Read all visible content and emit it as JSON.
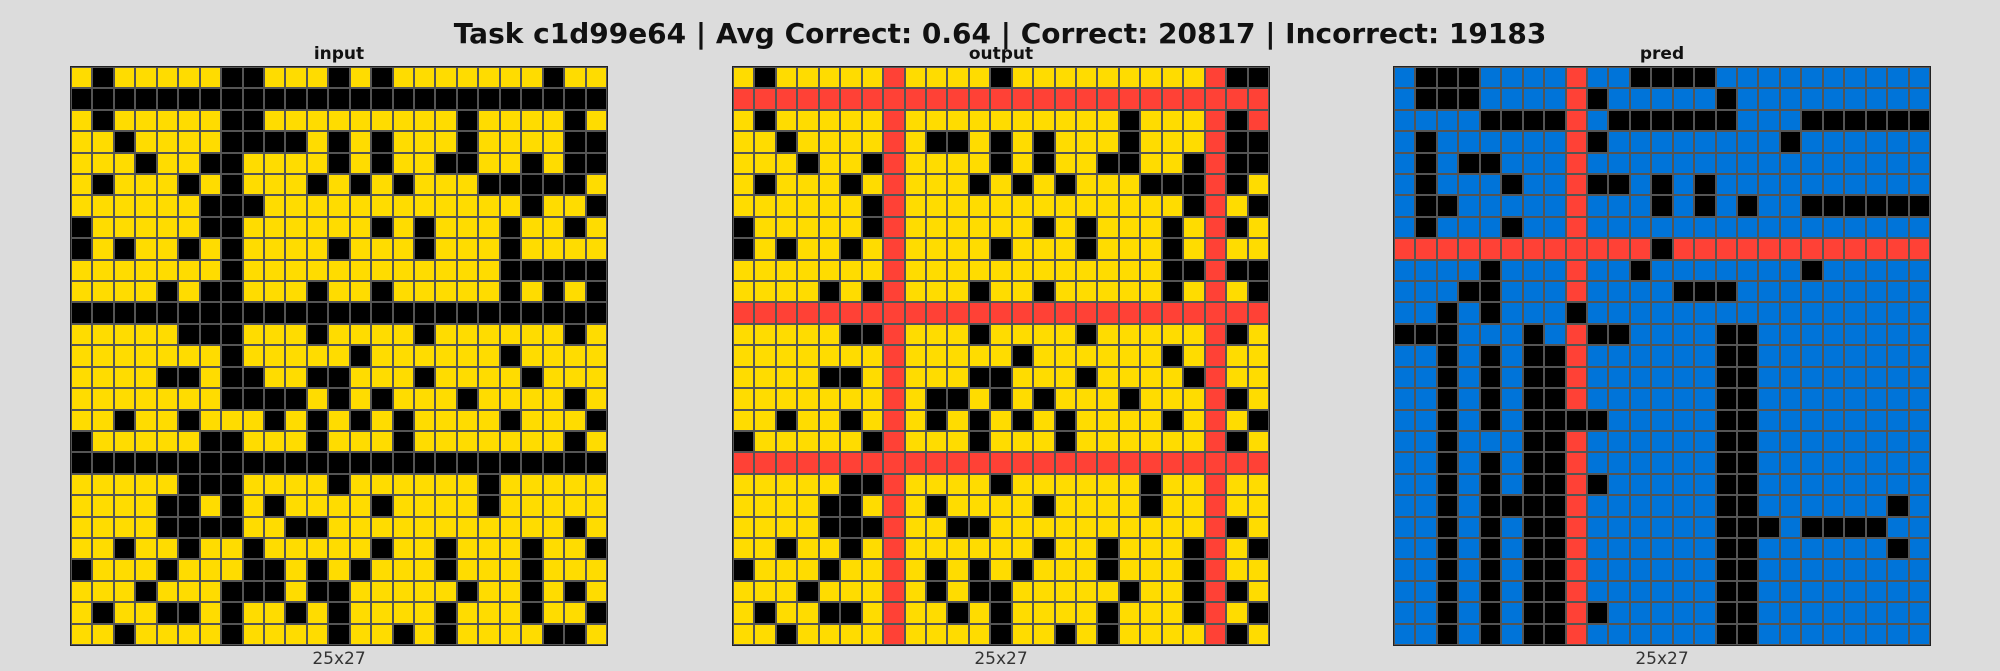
{
  "title": "Task c1d99e64 | Avg Correct: 0.64 | Correct: 20817 | Incorrect: 19183",
  "palette": {
    "0": "#000000",
    "1": "#0074d9",
    "2": "#ff4136",
    "4": "#ffdc00"
  },
  "panels": [
    {
      "label": "input",
      "dims": "25x27",
      "rows": [
        "4044444004440404444444044",
        "0000000000000000000000000",
        "4044444004444444440444404",
        "4404444000040404440444400",
        "4440440044440404400440400",
        "4044404044404040444000004",
        "4444440004444444444440440",
        "0444440044444404044404404",
        "0404404044440444044404444",
        "4444444044444444444400000",
        "4444040044404404444404040",
        "0000000000000000000000000",
        "4444400044404444044444404",
        "4444444044444044444404444",
        "4444004004400444044440444",
        "4444444000040404440444404",
        "4404404440404040444404440",
        "0444440044404440444444404",
        "0000000000000000000000000",
        "4444400044440444444044444",
        "4444004040444404444044444",
        "4444000044004444444444404",
        "4404404404444404404440440",
        "0444044400404044404440444",
        "4440444000400444440440404",
        "4044004044040444404440440",
        "4404444044440440404444004"
      ]
    },
    {
      "label": "output",
      "dims": "25x27",
      "rows": [
        "4044444244440444444444200",
        "2222222222222222222222222",
        "4044444244444444440444202",
        "4404444240040404440444200",
        "4440440244440404400440200",
        "4044404244404040444000204",
        "4444440244444444444440240",
        "0444440244444404044404204",
        "0404404244440444044404244",
        "4444444244444444444400200",
        "4444040244404404444404240",
        "2222222222222222222222222",
        "4444400244404444044444204",
        "4444444244444044444404244",
        "4444004244400444044440244",
        "4444444240040404440444204",
        "4404404240404040444404240",
        "0444440244404440444444204",
        "2222222222222222222222222",
        "4444400244440444444044244",
        "4444004240444404444044244",
        "4444000244004444444444204",
        "4404404244444404404440240",
        "0444044240404044404440244",
        "4440444240400444440440204",
        "4044004244040444404440240",
        "4404444244440440404444204"
      ]
    },
    {
      "label": "pred",
      "dims": "25x27",
      "rows": [
        "1000111121100001111111111",
        "1000111120111110111111111",
        "1111000021000000111000000",
        "1011111120111111110111111",
        "1010011121111111111111111",
        "1011101120010101111111111",
        "1001111121110101011000000",
        "1011101121111111111111111",
        "2222222222220222222222222",
        "1111011121101111111011111",
        "1110011121111000111111111",
        "1101011101111111111111111",
        "0001110120011110011111111",
        "1101010021111110011111111",
        "1101010021111110011111111",
        "1101010021111110011111111",
        "1101010000111110011111111",
        "1101110021111110011111111",
        "1101010021111110011111111",
        "1101010020111110011111111",
        "1101000021111110011111101",
        "1101010021111110001000011",
        "1101010021111110011111101",
        "1101010021111110011111111",
        "1101010021111110011111111",
        "1101010020111110011111111",
        "1101010021111110011111111"
      ]
    }
  ]
}
